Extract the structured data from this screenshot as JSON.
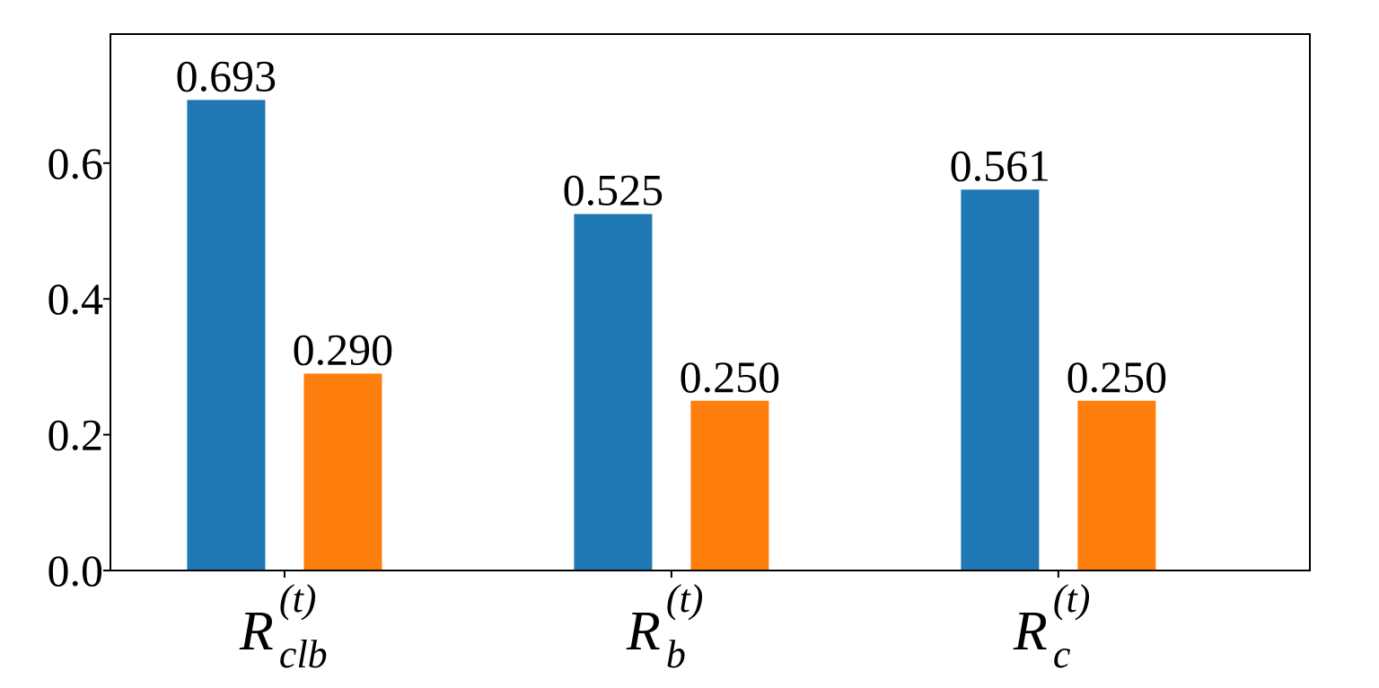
{
  "chart_data": {
    "type": "bar",
    "title": "",
    "xlabel": "",
    "ylabel": "",
    "ylim": [
      0,
      0.79
    ],
    "yticks": [
      0.0,
      0.2,
      0.4,
      0.6
    ],
    "ytick_labels": [
      "0.0",
      "0.2",
      "0.4",
      "0.6"
    ],
    "categories": [
      {
        "main": "R",
        "sup": "(t)",
        "sub": "clb"
      },
      {
        "main": "R",
        "sup": "(t)",
        "sub": "b"
      },
      {
        "main": "R",
        "sup": "(t)",
        "sub": "c"
      }
    ],
    "series": [
      {
        "values": [
          0.693,
          0.525,
          0.561
        ],
        "labels": [
          "0.693",
          "0.525",
          "0.561"
        ],
        "color": "#1f77b4"
      },
      {
        "values": [
          0.29,
          0.25,
          0.25
        ],
        "labels": [
          "0.290",
          "0.250",
          "0.250"
        ],
        "color": "#ff7f0e"
      }
    ],
    "grid": false,
    "legend": "none"
  }
}
